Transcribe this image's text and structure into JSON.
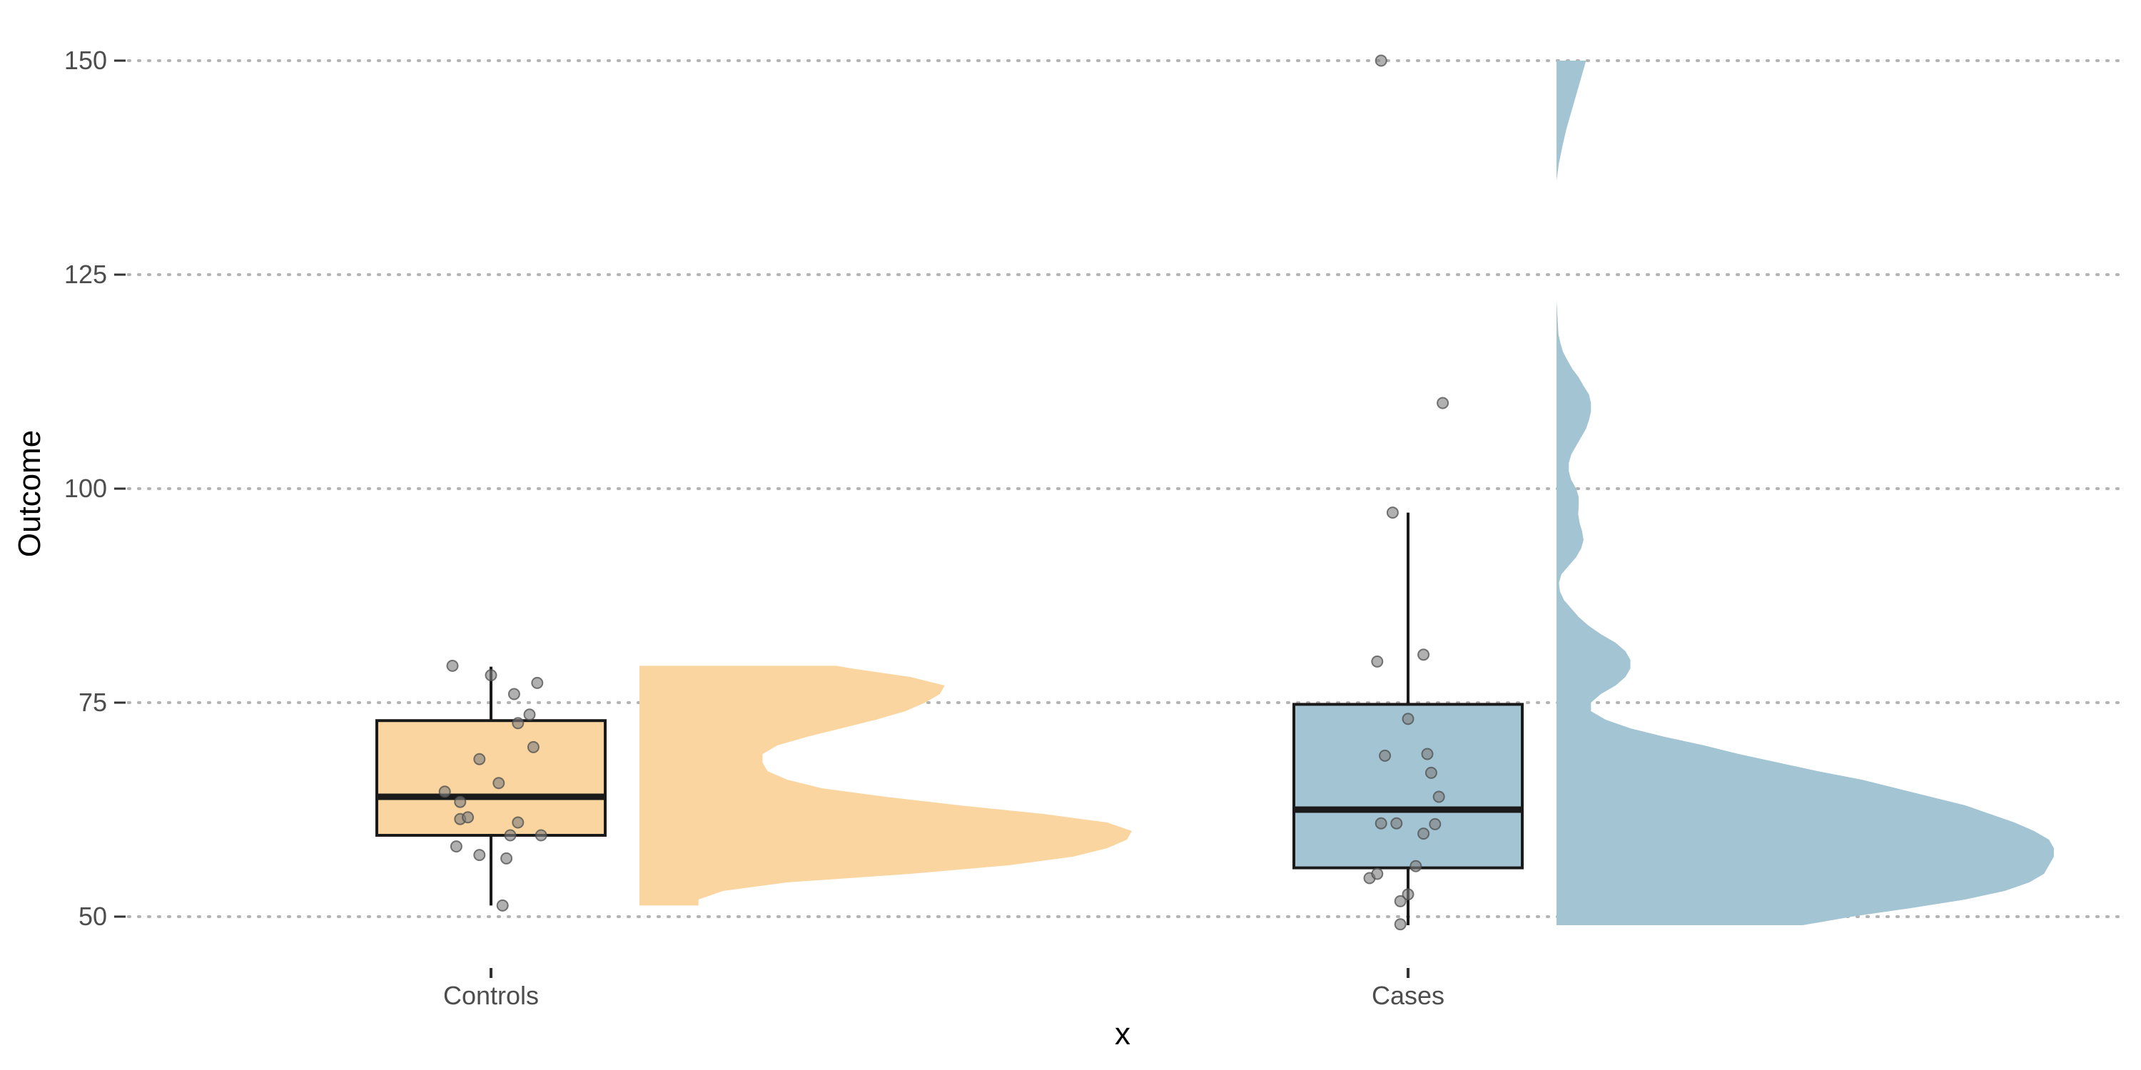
{
  "chart_data": {
    "type": "raincloud",
    "xlabel": "x",
    "ylabel": "Outcome",
    "ylim": [
      45,
      153
    ],
    "yticks": [
      50,
      75,
      100,
      125,
      150
    ],
    "grid": "horizontal-dotted",
    "groups": [
      {
        "name": "Controls",
        "color": "#fad59f",
        "box": {
          "lower_whisker": 51.3,
          "q1": 59.5,
          "median": 64.0,
          "q3": 72.9,
          "upper_whisker": 79.2
        },
        "points": [
          [
            -0.1,
            79.3
          ],
          [
            0.0,
            78.2
          ],
          [
            0.06,
            76.0
          ],
          [
            0.12,
            77.3
          ],
          [
            0.1,
            73.6
          ],
          [
            0.07,
            72.6
          ],
          [
            0.11,
            69.8
          ],
          [
            -0.03,
            68.4
          ],
          [
            0.02,
            65.6
          ],
          [
            -0.12,
            64.6
          ],
          [
            -0.08,
            63.4
          ],
          [
            -0.08,
            61.4
          ],
          [
            -0.06,
            61.6
          ],
          [
            0.07,
            61.0
          ],
          [
            0.05,
            59.5
          ],
          [
            0.13,
            59.5
          ],
          [
            -0.09,
            58.2
          ],
          [
            -0.03,
            57.2
          ],
          [
            0.04,
            56.8
          ],
          [
            0.03,
            51.3
          ]
        ],
        "density": [
          [
            51.3,
            0.12
          ],
          [
            52,
            0.12
          ],
          [
            53,
            0.17
          ],
          [
            54,
            0.3
          ],
          [
            55,
            0.55
          ],
          [
            56,
            0.75
          ],
          [
            57,
            0.88
          ],
          [
            58,
            0.95
          ],
          [
            59,
            0.99
          ],
          [
            60,
            1.0
          ],
          [
            61,
            0.95
          ],
          [
            62,
            0.82
          ],
          [
            63,
            0.65
          ],
          [
            64,
            0.5
          ],
          [
            65,
            0.37
          ],
          [
            66,
            0.3
          ],
          [
            67,
            0.26
          ],
          [
            68,
            0.25
          ],
          [
            69,
            0.25
          ],
          [
            70,
            0.28
          ],
          [
            71,
            0.34
          ],
          [
            72,
            0.41
          ],
          [
            73,
            0.48
          ],
          [
            74,
            0.54
          ],
          [
            75,
            0.58
          ],
          [
            76,
            0.61
          ],
          [
            77,
            0.62
          ],
          [
            78,
            0.55
          ],
          [
            79,
            0.43
          ],
          [
            79.3,
            0.4
          ]
        ]
      },
      {
        "name": "Cases",
        "color": "#a2c4d3",
        "box": {
          "lower_whisker": 49.0,
          "q1": 55.7,
          "median": 62.5,
          "q3": 74.8,
          "upper_whisker": 97.2
        },
        "points": [
          [
            -0.07,
            150.0
          ],
          [
            0.09,
            110.0
          ],
          [
            -0.04,
            97.2
          ],
          [
            0.04,
            80.6
          ],
          [
            -0.08,
            79.8
          ],
          [
            0.0,
            73.1
          ],
          [
            -0.06,
            68.8
          ],
          [
            0.05,
            69.0
          ],
          [
            0.06,
            66.8
          ],
          [
            0.08,
            64.0
          ],
          [
            -0.07,
            60.9
          ],
          [
            -0.03,
            60.9
          ],
          [
            0.04,
            59.7
          ],
          [
            0.07,
            60.8
          ],
          [
            0.02,
            55.9
          ],
          [
            -0.1,
            54.5
          ],
          [
            -0.08,
            55.0
          ],
          [
            0.0,
            52.6
          ],
          [
            -0.02,
            51.8
          ],
          [
            -0.02,
            49.1
          ]
        ],
        "density": [
          [
            49,
            0.5
          ],
          [
            50,
            0.6
          ],
          [
            51,
            0.72
          ],
          [
            52,
            0.83
          ],
          [
            53,
            0.91
          ],
          [
            54,
            0.96
          ],
          [
            55,
            0.99
          ],
          [
            56,
            1.0
          ],
          [
            57,
            1.01
          ],
          [
            58,
            1.01
          ],
          [
            59,
            1.0
          ],
          [
            60,
            0.97
          ],
          [
            61,
            0.93
          ],
          [
            62,
            0.88
          ],
          [
            63,
            0.83
          ],
          [
            64,
            0.76
          ],
          [
            65,
            0.69
          ],
          [
            66,
            0.62
          ],
          [
            67,
            0.53
          ],
          [
            68,
            0.45
          ],
          [
            69,
            0.37
          ],
          [
            70,
            0.3
          ],
          [
            71,
            0.22
          ],
          [
            72,
            0.15
          ],
          [
            73,
            0.1
          ],
          [
            74,
            0.07
          ],
          [
            75,
            0.07
          ],
          [
            76,
            0.09
          ],
          [
            77,
            0.12
          ],
          [
            78,
            0.14
          ],
          [
            79,
            0.15
          ],
          [
            80,
            0.15
          ],
          [
            81,
            0.14
          ],
          [
            82,
            0.12
          ],
          [
            83,
            0.09
          ],
          [
            84,
            0.065
          ],
          [
            85,
            0.045
          ],
          [
            86,
            0.03
          ],
          [
            87,
            0.015
          ],
          [
            88,
            0.007
          ],
          [
            89,
            0.005
          ],
          [
            90,
            0.01
          ],
          [
            91,
            0.025
          ],
          [
            92,
            0.04
          ],
          [
            93,
            0.05
          ],
          [
            94,
            0.055
          ],
          [
            95,
            0.052
          ],
          [
            96,
            0.047
          ],
          [
            97,
            0.044
          ],
          [
            98,
            0.045
          ],
          [
            99,
            0.045
          ],
          [
            100,
            0.04
          ],
          [
            101,
            0.03
          ],
          [
            102,
            0.025
          ],
          [
            103,
            0.025
          ],
          [
            104,
            0.03
          ],
          [
            105,
            0.04
          ],
          [
            106,
            0.05
          ],
          [
            107,
            0.06
          ],
          [
            108,
            0.066
          ],
          [
            109,
            0.07
          ],
          [
            110,
            0.07
          ],
          [
            111,
            0.066
          ],
          [
            112,
            0.055
          ],
          [
            113,
            0.045
          ],
          [
            114,
            0.032
          ],
          [
            115,
            0.022
          ],
          [
            116,
            0.013
          ],
          [
            117,
            0.008
          ],
          [
            118,
            0.004
          ],
          [
            120,
            0.002
          ],
          [
            122,
            0.0
          ],
          [
            128,
            0.0
          ],
          [
            136,
            0.0
          ],
          [
            138,
            0.005
          ],
          [
            140,
            0.012
          ],
          [
            142,
            0.02
          ],
          [
            144,
            0.03
          ],
          [
            146,
            0.04
          ],
          [
            148,
            0.05
          ],
          [
            150,
            0.06
          ]
        ]
      }
    ]
  }
}
